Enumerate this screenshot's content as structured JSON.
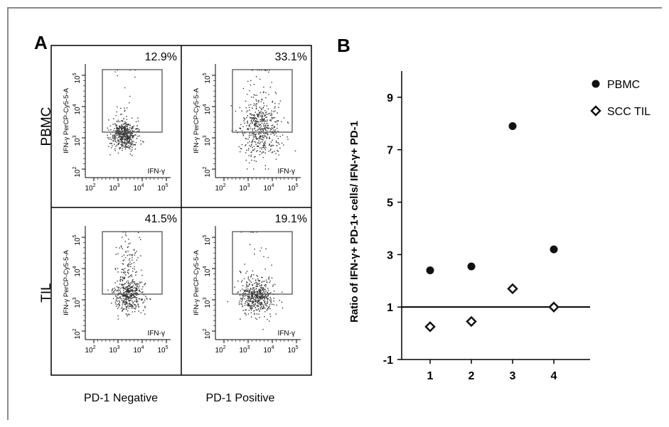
{
  "panel_a": {
    "letter": "A",
    "row_labels": [
      "PBMC",
      "TIL"
    ],
    "col_labels": [
      "PD-1 Negative",
      "PD-1 Positive"
    ],
    "panels": [
      {
        "percent": "12.9%",
        "ylabel": "IFN-γ PerCP-Cy5-5-A",
        "xlabel": "IFN-γ"
      },
      {
        "percent": "33.1%",
        "ylabel": "IFN-γ PerCP-Cy5-5-A",
        "xlabel": "IFN-γ"
      },
      {
        "percent": "41.5%",
        "ylabel": "IFN-γ PerCP-Cy5-5-A",
        "xlabel": "IFN-γ"
      },
      {
        "percent": "19.1%",
        "ylabel": "IFN-γ PerCP-Cy5-5-A",
        "xlabel": "IFN-γ"
      }
    ],
    "axis_ticks": [
      "10",
      "10",
      "10",
      "10"
    ],
    "axis_exponents": [
      "2",
      "3",
      "4",
      "5"
    ]
  },
  "chart_data": [
    {
      "type": "scatter",
      "panel": "A",
      "description_note": "",
      "x_ticks": [
        "10²",
        "10³",
        "10⁴",
        "10⁵"
      ],
      "y_ticks": [
        "10²",
        "10³",
        "10⁴",
        "10⁵"
      ],
      "xlabel": "IFN-γ",
      "ylabel": "IFN-γ PerCP-Cy5-5-A",
      "gates_percent": [
        {
          "row": "PBMC",
          "col": "PD-1 Negative",
          "value": 12.9
        },
        {
          "row": "PBMC",
          "col": "PD-1 Positive",
          "value": 33.1
        },
        {
          "row": "TIL",
          "col": "PD-1 Negative",
          "value": 41.5
        },
        {
          "row": "TIL",
          "col": "PD-1 Positive",
          "value": 19.1
        }
      ]
    },
    {
      "type": "scatter",
      "panel": "B",
      "title": "B",
      "xlabel": "",
      "ylabel": "Ratio of IFN-γ+ PD-1+ cells/ IFN-γ+ PD-1",
      "categories": [
        "1",
        "2",
        "3",
        "4"
      ],
      "y_ticks": [
        "-1",
        "1",
        "3",
        "5",
        "7",
        "9"
      ],
      "ylim": [
        -1,
        10
      ],
      "reference_line": 1,
      "series": [
        {
          "name": "PBMC",
          "marker": "filled-circle",
          "values": [
            2.4,
            2.55,
            7.9,
            3.2
          ]
        },
        {
          "name": "SCC TIL",
          "marker": "open-diamond",
          "values": [
            0.25,
            0.45,
            1.7,
            1.0
          ]
        }
      ],
      "legend_position": "top-right"
    }
  ]
}
